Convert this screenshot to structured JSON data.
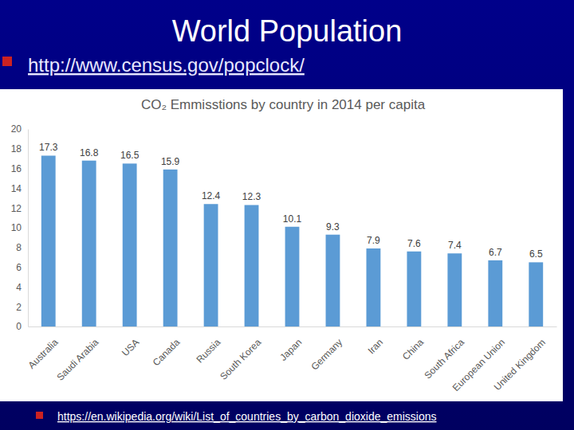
{
  "slide": {
    "title": "World Population",
    "links": [
      "http://www.census.gov/popclock/",
      "https://en.wikipedia.org/wiki/List_of_countries_by_carbon_dioxide_emissions"
    ]
  },
  "chart_data": {
    "type": "bar",
    "title": "CO₂ Emmisstions by country in 2014 per capita",
    "categories": [
      "Australia",
      "Saudi Arabia",
      "USA",
      "Canada",
      "Russia",
      "South Korea",
      "Japan",
      "Germany",
      "Iran",
      "China",
      "South Africa",
      "European Union",
      "United Kingdom"
    ],
    "values": [
      17.3,
      16.8,
      16.5,
      15.9,
      12.4,
      12.3,
      10.1,
      9.3,
      7.9,
      7.6,
      7.4,
      6.7,
      6.5
    ],
    "color": "#5b9bd5",
    "ylim": [
      0,
      20
    ],
    "yticks": [
      0,
      2,
      4,
      6,
      8,
      10,
      12,
      14,
      16,
      18,
      20
    ],
    "grid": false,
    "data_labels": true
  }
}
